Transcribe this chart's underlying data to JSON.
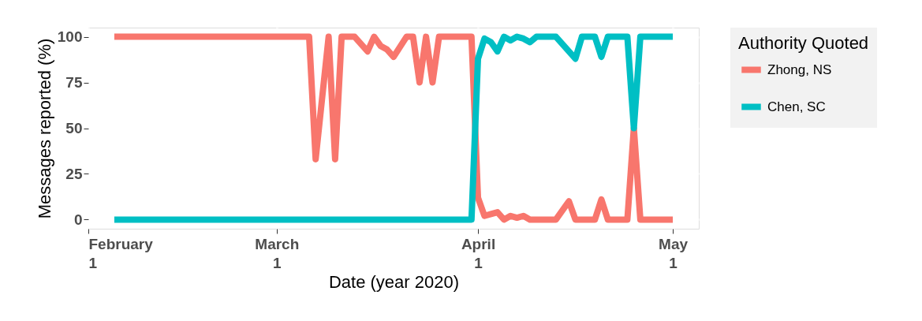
{
  "chart_data": {
    "type": "line",
    "xlabel": "Date (year 2020)",
    "ylabel": "Messages reported (%)",
    "legend_title": "Authority Quoted",
    "legend": "right",
    "grid": true,
    "line_style": "solid",
    "xlim": [
      "2020-02-01",
      "2020-05-05"
    ],
    "xticks": [
      {
        "value": "2020-02-01",
        "label": "February\n1"
      },
      {
        "value": "2020-03-01",
        "label": "March\n1"
      },
      {
        "value": "2020-04-01",
        "label": "April\n1"
      },
      {
        "value": "2020-05-01",
        "label": "May\n1"
      }
    ],
    "ylim": [
      -5,
      105
    ],
    "yticks": [
      0,
      25,
      50,
      75,
      100
    ],
    "series": [
      {
        "name": "Zhong, NS",
        "color": "#f8766d",
        "x": [
          "2020-02-05",
          "2020-03-06",
          "2020-03-07",
          "2020-03-09",
          "2020-03-10",
          "2020-03-11",
          "2020-03-13",
          "2020-03-15",
          "2020-03-16",
          "2020-03-17",
          "2020-03-18",
          "2020-03-19",
          "2020-03-21",
          "2020-03-22",
          "2020-03-23",
          "2020-03-24",
          "2020-03-25",
          "2020-03-26",
          "2020-03-31",
          "2020-04-01",
          "2020-04-02",
          "2020-04-03",
          "2020-04-04",
          "2020-04-05",
          "2020-04-06",
          "2020-04-07",
          "2020-04-08",
          "2020-04-09",
          "2020-04-10",
          "2020-04-13",
          "2020-04-15",
          "2020-04-16",
          "2020-04-19",
          "2020-04-20",
          "2020-04-21",
          "2020-04-24",
          "2020-04-25",
          "2020-04-26",
          "2020-05-01"
        ],
        "values": [
          100,
          100,
          33,
          100,
          33,
          100,
          100,
          92,
          100,
          95,
          93,
          89,
          100,
          100,
          75,
          100,
          75,
          100,
          100,
          12,
          2,
          3,
          4,
          0,
          2,
          1,
          2,
          0,
          0,
          0,
          10,
          0,
          0,
          11,
          0,
          0,
          50,
          0,
          0
        ]
      },
      {
        "name": "Chen, SC",
        "color": "#00bfc4",
        "x": [
          "2020-02-05",
          "2020-03-31",
          "2020-04-01",
          "2020-04-02",
          "2020-04-03",
          "2020-04-04",
          "2020-04-05",
          "2020-04-06",
          "2020-04-07",
          "2020-04-08",
          "2020-04-09",
          "2020-04-10",
          "2020-04-13",
          "2020-04-15",
          "2020-04-16",
          "2020-04-17",
          "2020-04-19",
          "2020-04-20",
          "2020-04-21",
          "2020-04-24",
          "2020-04-25",
          "2020-04-26",
          "2020-05-01"
        ],
        "values": [
          0,
          0,
          88,
          99,
          97,
          92,
          100,
          98,
          100,
          99,
          97,
          100,
          100,
          92,
          88,
          100,
          100,
          89,
          100,
          100,
          50,
          100,
          100
        ]
      }
    ]
  }
}
